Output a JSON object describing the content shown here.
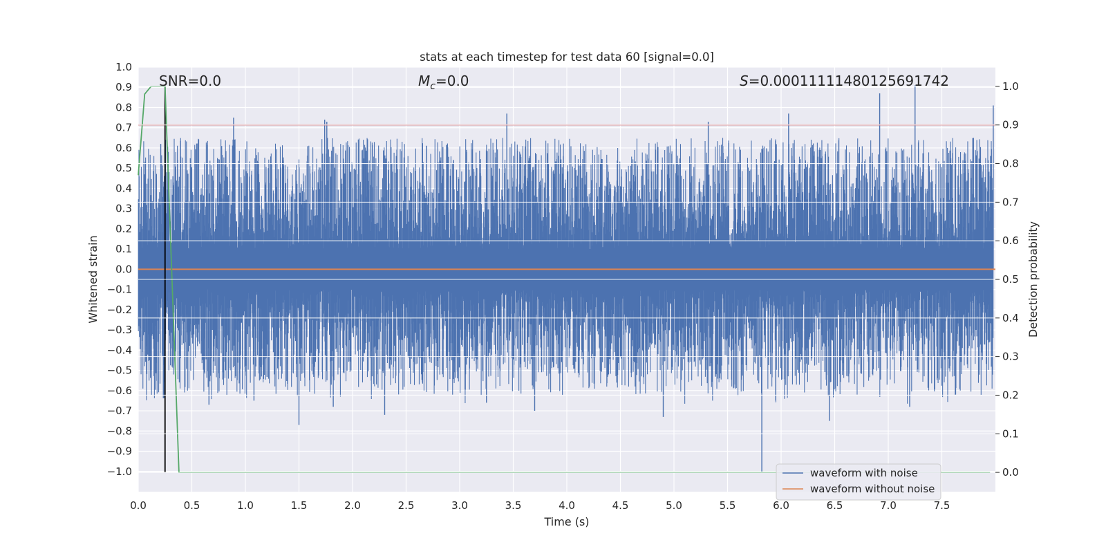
{
  "chart_data": {
    "type": "line",
    "title": "stats at each timestep for test data 60 [signal=0.0]",
    "xlabel": "Time (s)",
    "ylabel_left": "Whitened strain",
    "ylabel_right": "Detection probability",
    "xlim": [
      0.0,
      8.0
    ],
    "ylim_left": [
      -1.1,
      1.0
    ],
    "ylim_right": [
      -0.05,
      1.05
    ],
    "x_ticks": [
      "0.0",
      "0.5",
      "1.0",
      "1.5",
      "2.0",
      "2.5",
      "3.0",
      "3.5",
      "4.0",
      "4.5",
      "5.0",
      "5.5",
      "6.0",
      "6.5",
      "7.0",
      "7.5"
    ],
    "y_ticks_left": [
      "1.0",
      "0.9",
      "0.8",
      "0.7",
      "0.6",
      "0.5",
      "0.4",
      "0.3",
      "0.2",
      "0.1",
      "0.0",
      "−0.1",
      "−0.2",
      "−0.3",
      "−0.4",
      "−0.5",
      "−0.6",
      "−0.7",
      "−0.8",
      "−0.9",
      "−1.0"
    ],
    "y_ticks_right": [
      "1.0",
      "0.9",
      "0.8",
      "0.7",
      "0.6",
      "0.5",
      "0.4",
      "0.3",
      "0.2",
      "0.1",
      "0.0"
    ],
    "grid": true,
    "legend_position": "lower-right",
    "annotations": {
      "snr": "SNR=0.0",
      "mc_symbol": "M",
      "mc_sub": "c",
      "mc_value": "=0.0",
      "s_symbol": "S",
      "s_value": "=0.00011111480125691742"
    },
    "series": [
      {
        "name": "waveform with noise",
        "color": "#4c72b0",
        "axis": "left",
        "envelope_typical": [
          -0.36,
          0.4
        ],
        "spikes": [
          {
            "x": 0.21,
            "y": 0.62
          },
          {
            "x": 0.25,
            "y": 0.9
          },
          {
            "x": 0.28,
            "y": 0.58
          },
          {
            "x": 0.89,
            "y": 0.75
          },
          {
            "x": 1.74,
            "y": 0.74
          },
          {
            "x": 1.76,
            "y": 0.73
          },
          {
            "x": 3.44,
            "y": 0.77
          },
          {
            "x": 5.32,
            "y": 0.73
          },
          {
            "x": 6.07,
            "y": 0.77
          },
          {
            "x": 6.92,
            "y": 0.87
          },
          {
            "x": 7.25,
            "y": 0.91
          },
          {
            "x": 7.98,
            "y": 0.81
          },
          {
            "x": 1.5,
            "y": -0.77
          },
          {
            "x": 2.3,
            "y": -0.72
          },
          {
            "x": 3.7,
            "y": -0.7
          },
          {
            "x": 4.9,
            "y": -0.73
          },
          {
            "x": 5.82,
            "y": -1.0
          },
          {
            "x": 6.45,
            "y": -0.75
          },
          {
            "x": 7.2,
            "y": -0.68
          },
          {
            "x": 0.66,
            "y": -0.67
          },
          {
            "x": 1.08,
            "y": -0.65
          },
          {
            "x": 1.82,
            "y": -0.68
          },
          {
            "x": 3.25,
            "y": -0.66
          }
        ]
      },
      {
        "name": "waveform without noise",
        "color": "#dd8452",
        "axis": "left",
        "x": [
          0.0,
          8.0
        ],
        "y": [
          0.0,
          0.0
        ]
      },
      {
        "color": "#55a868",
        "axis": "right",
        "x": [
          0.0,
          0.06,
          0.12,
          0.25,
          0.38,
          7.95
        ],
        "y": [
          0.77,
          0.98,
          1.0,
          1.0,
          0.0,
          0.0
        ]
      },
      {
        "color": "#c44e52",
        "axis": "right",
        "x": [
          0.0,
          8.0
        ],
        "y": [
          0.9,
          0.9
        ]
      },
      {
        "color": "#000000",
        "axis": "right",
        "x": [
          0.25,
          0.25
        ],
        "y": [
          0.0,
          1.0
        ]
      }
    ]
  }
}
